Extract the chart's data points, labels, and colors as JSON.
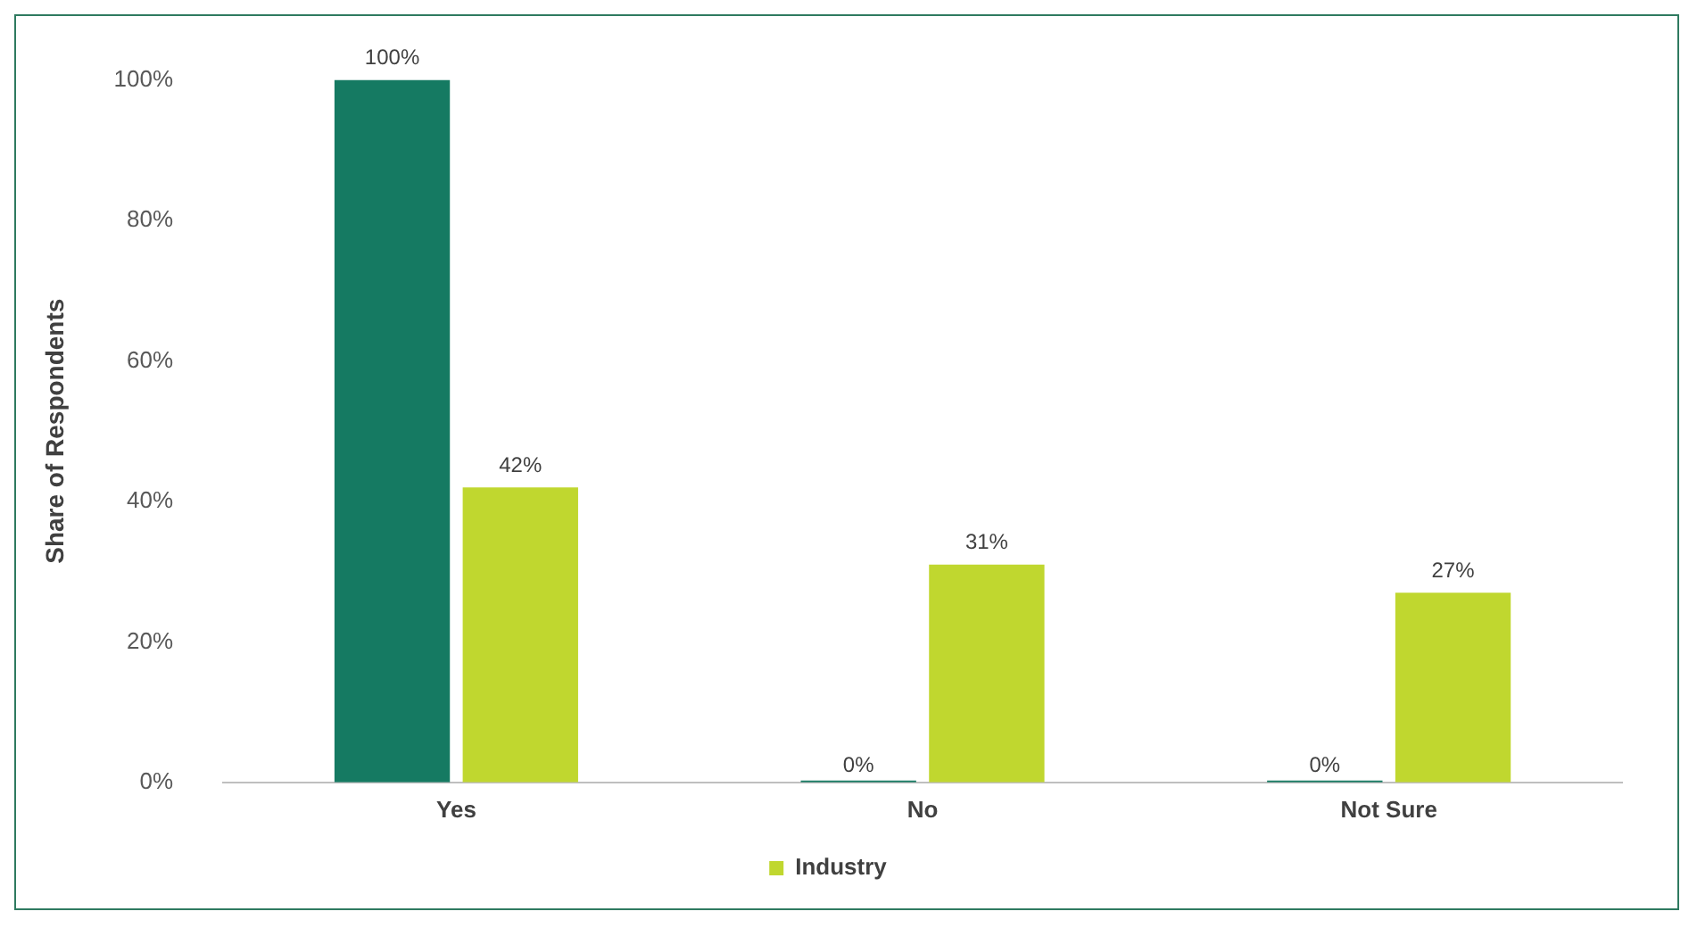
{
  "chart_data": {
    "type": "bar",
    "ylabel": "Share of Respondents",
    "categories": [
      "Yes",
      "No",
      "Not Sure"
    ],
    "series": [
      {
        "color": "#157a62",
        "values": [
          100,
          0,
          0
        ],
        "value_labels": [
          "100%",
          "0%",
          "0%"
        ]
      },
      {
        "name": "Industry",
        "color": "#c0d72f",
        "values": [
          42,
          31,
          27
        ],
        "value_labels": [
          "42%",
          "31%",
          "27%"
        ]
      }
    ],
    "ylim": [
      0,
      100
    ],
    "yticks": [
      {
        "value": 0,
        "label": "0%"
      },
      {
        "value": 20,
        "label": "20%"
      },
      {
        "value": 40,
        "label": "40%"
      },
      {
        "value": 60,
        "label": "60%"
      },
      {
        "value": 80,
        "label": "80%"
      },
      {
        "value": 100,
        "label": "100%"
      }
    ],
    "grid": false,
    "legend": "bottom"
  }
}
